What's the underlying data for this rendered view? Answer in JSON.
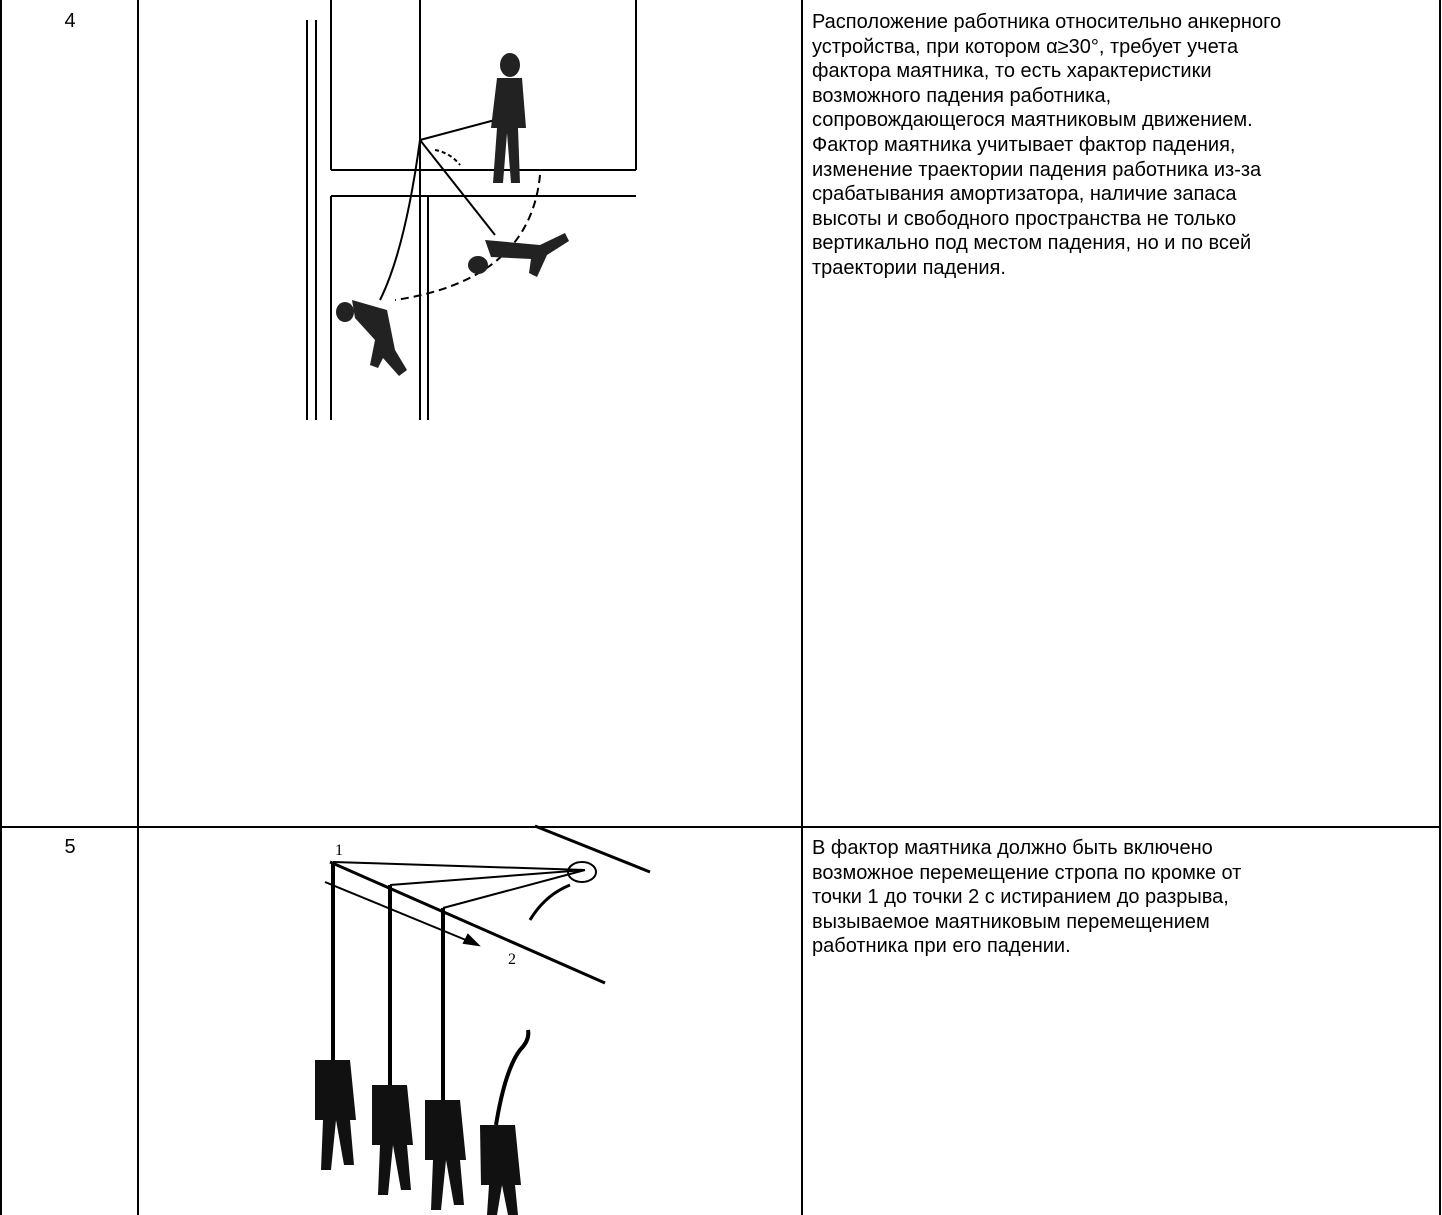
{
  "table": {
    "rows": [
      {
        "number": "4",
        "text_lines": [
          "Расположение работника относительно анкерного",
          "устройства, при котором α≥30°, требует учета",
          "фактора маятника, то есть характеристики",
          "возможного падения работника,",
          "сопровождающегося маятниковым движением.",
          "Фактор маятника учитывает фактор падения,",
          "изменение траектории падения работника из-за",
          "срабатывания амортизатора, наличие запаса",
          "высоты и свободного пространства не только",
          "вертикально под местом падения, но и по всей",
          "траектории падения."
        ]
      },
      {
        "number": "5",
        "figure_labels": [
          "1",
          "2"
        ],
        "text_lines": [
          "В фактор маятника должно быть включено",
          "возможное перемещение стропа по кромке от",
          "точки 1 до точки 2 с истиранием до разрыва,",
          "вызываемое маятниковым перемещением",
          "работника при его падении."
        ]
      }
    ]
  }
}
